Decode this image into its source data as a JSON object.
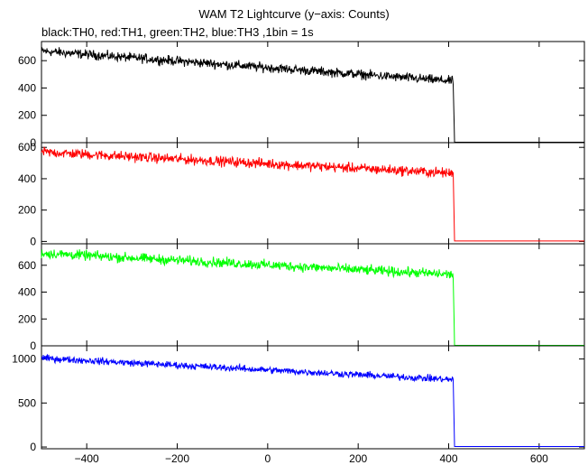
{
  "title": "WAM T2 Lightcurve (y−axis: Counts)",
  "subtitle": "black:TH0, red:TH1, green:TH2, blue:TH3 ,1bin = 1s",
  "chart_data": {
    "type": "line",
    "xlim": [
      -500,
      700
    ],
    "x_ticks": [
      -400,
      -200,
      0,
      200,
      400,
      600
    ],
    "x_tick_labels": [
      "−400",
      "−200",
      "0",
      "200",
      "400",
      "600"
    ],
    "cutoff_x": 410,
    "panels": [
      {
        "name": "TH0",
        "color": "#000000",
        "ylim": [
          0,
          740
        ],
        "y_ticks": [
          0,
          200,
          400,
          600
        ],
        "y_tick_labels": [
          "0",
          "200",
          "400",
          "600"
        ],
        "start_level": 670,
        "end_level": 450,
        "noise": 28,
        "after_level": 3
      },
      {
        "name": "TH1",
        "color": "#ff0000",
        "ylim": [
          -15,
          630
        ],
        "y_ticks": [
          0,
          200,
          400,
          600
        ],
        "y_tick_labels": [
          "0",
          "200",
          "400",
          "600"
        ],
        "start_level": 570,
        "end_level": 435,
        "noise": 26,
        "after_level": 3
      },
      {
        "name": "TH2",
        "color": "#00ff00",
        "ylim": [
          0,
          760
        ],
        "y_ticks": [
          0,
          200,
          400,
          600
        ],
        "y_tick_labels": [
          "0",
          "200",
          "400",
          "600"
        ],
        "start_level": 690,
        "end_level": 530,
        "noise": 30,
        "after_level": 3
      },
      {
        "name": "TH3",
        "color": "#0000ff",
        "ylim": [
          -20,
          1150
        ],
        "y_ticks": [
          0,
          500,
          1000
        ],
        "y_tick_labels": [
          "0",
          "500",
          "1000"
        ],
        "start_level": 1010,
        "end_level": 765,
        "noise": 32,
        "after_level": 5
      }
    ]
  }
}
